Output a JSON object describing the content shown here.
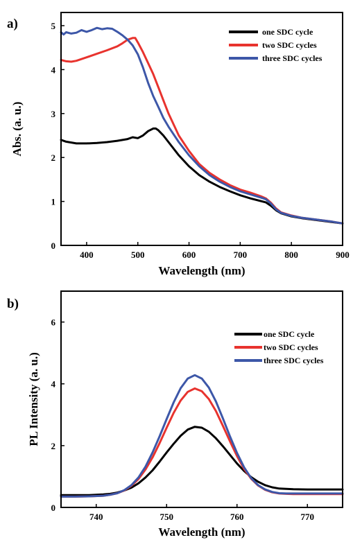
{
  "colors": {
    "black": "#000000",
    "red": "#e8332e",
    "blue": "#3d57a8"
  },
  "chart_data": [
    {
      "panel_label": "a)",
      "type": "line",
      "xlabel": "Wavelength (nm)",
      "ylabel": "Abs. (a. u.)",
      "xlim": [
        350,
        900
      ],
      "ylim": [
        0,
        5.3
      ],
      "xticks": [
        400,
        500,
        600,
        700,
        800,
        900
      ],
      "yticks": [
        0,
        1,
        2,
        3,
        4,
        5
      ],
      "grid": false,
      "legend_position": "top-right",
      "series": [
        {
          "name": "one SDC cycle",
          "color": "#000000",
          "x": [
            350,
            360,
            380,
            400,
            420,
            440,
            460,
            480,
            490,
            500,
            510,
            520,
            530,
            535,
            540,
            550,
            560,
            580,
            600,
            620,
            640,
            660,
            680,
            700,
            720,
            740,
            750,
            760,
            770,
            780,
            800,
            820,
            840,
            860,
            880,
            900
          ],
          "y": [
            2.4,
            2.36,
            2.32,
            2.32,
            2.33,
            2.35,
            2.38,
            2.42,
            2.46,
            2.44,
            2.5,
            2.6,
            2.66,
            2.66,
            2.62,
            2.5,
            2.35,
            2.05,
            1.8,
            1.6,
            1.45,
            1.33,
            1.23,
            1.14,
            1.07,
            1.01,
            0.98,
            0.9,
            0.8,
            0.73,
            0.66,
            0.62,
            0.59,
            0.56,
            0.53,
            0.5
          ]
        },
        {
          "name": "two SDC cycles",
          "color": "#e8332e",
          "x": [
            350,
            360,
            370,
            380,
            400,
            420,
            440,
            460,
            470,
            480,
            490,
            495,
            500,
            510,
            520,
            530,
            540,
            550,
            560,
            580,
            600,
            620,
            640,
            660,
            680,
            700,
            720,
            740,
            750,
            760,
            770,
            780,
            800,
            820,
            840,
            860,
            880,
            900
          ],
          "y": [
            4.22,
            4.19,
            4.18,
            4.2,
            4.28,
            4.36,
            4.44,
            4.53,
            4.6,
            4.68,
            4.72,
            4.72,
            4.62,
            4.4,
            4.15,
            3.9,
            3.6,
            3.3,
            3.0,
            2.5,
            2.15,
            1.85,
            1.65,
            1.5,
            1.37,
            1.27,
            1.2,
            1.12,
            1.07,
            0.97,
            0.84,
            0.75,
            0.68,
            0.63,
            0.6,
            0.57,
            0.54,
            0.5
          ]
        },
        {
          "name": "three SDC cycles",
          "color": "#3d57a8",
          "x": [
            350,
            355,
            360,
            370,
            380,
            390,
            400,
            410,
            420,
            430,
            440,
            450,
            460,
            470,
            480,
            490,
            500,
            510,
            520,
            530,
            540,
            550,
            560,
            580,
            600,
            620,
            640,
            660,
            680,
            700,
            720,
            740,
            750,
            760,
            770,
            780,
            800,
            820,
            840,
            860,
            880,
            900
          ],
          "y": [
            4.85,
            4.8,
            4.85,
            4.82,
            4.84,
            4.9,
            4.86,
            4.9,
            4.95,
            4.92,
            4.94,
            4.93,
            4.86,
            4.78,
            4.68,
            4.55,
            4.35,
            4.05,
            3.7,
            3.4,
            3.15,
            2.9,
            2.7,
            2.35,
            2.05,
            1.8,
            1.6,
            1.45,
            1.33,
            1.23,
            1.16,
            1.09,
            1.05,
            0.95,
            0.82,
            0.74,
            0.67,
            0.63,
            0.6,
            0.57,
            0.54,
            0.5
          ]
        }
      ]
    },
    {
      "panel_label": "b)",
      "type": "line",
      "xlabel": "Wavelength (nm)",
      "ylabel": "PL Intensity (a. u.)",
      "xlim": [
        735,
        775
      ],
      "ylim": [
        0,
        7
      ],
      "xticks": [
        740,
        750,
        760,
        770
      ],
      "yticks": [
        0,
        2,
        4,
        6
      ],
      "grid": false,
      "legend_position": "top-right",
      "series": [
        {
          "name": "one SDC cycle",
          "color": "#000000",
          "x": [
            735,
            737,
            739,
            741,
            742,
            743,
            744,
            745,
            746,
            747,
            748,
            749,
            750,
            751,
            752,
            753,
            754,
            755,
            756,
            757,
            758,
            759,
            760,
            761,
            762,
            763,
            764,
            765,
            766,
            768,
            770,
            772,
            775
          ],
          "y": [
            0.4,
            0.4,
            0.4,
            0.42,
            0.44,
            0.48,
            0.55,
            0.64,
            0.78,
            0.97,
            1.2,
            1.48,
            1.78,
            2.06,
            2.32,
            2.52,
            2.61,
            2.58,
            2.45,
            2.24,
            1.98,
            1.7,
            1.42,
            1.18,
            0.98,
            0.83,
            0.72,
            0.65,
            0.61,
            0.59,
            0.58,
            0.58,
            0.58
          ]
        },
        {
          "name": "two SDC cycles",
          "color": "#e8332e",
          "x": [
            735,
            737,
            739,
            741,
            742,
            743,
            744,
            745,
            746,
            747,
            748,
            749,
            750,
            751,
            752,
            753,
            754,
            755,
            756,
            757,
            758,
            759,
            760,
            761,
            762,
            763,
            764,
            765,
            766,
            767,
            768,
            770,
            772,
            775
          ],
          "y": [
            0.35,
            0.35,
            0.36,
            0.38,
            0.41,
            0.46,
            0.55,
            0.7,
            0.92,
            1.23,
            1.62,
            2.08,
            2.58,
            3.06,
            3.46,
            3.74,
            3.85,
            3.76,
            3.51,
            3.12,
            2.64,
            2.14,
            1.66,
            1.25,
            0.93,
            0.71,
            0.57,
            0.49,
            0.45,
            0.44,
            0.43,
            0.43,
            0.43,
            0.43
          ]
        },
        {
          "name": "three SDC cycles",
          "color": "#3d57a8",
          "x": [
            735,
            737,
            739,
            741,
            742,
            743,
            744,
            745,
            746,
            747,
            748,
            749,
            750,
            751,
            752,
            753,
            754,
            755,
            756,
            757,
            758,
            759,
            760,
            761,
            762,
            763,
            764,
            765,
            766,
            767,
            768,
            770,
            772,
            775
          ],
          "y": [
            0.35,
            0.35,
            0.36,
            0.38,
            0.41,
            0.46,
            0.56,
            0.72,
            0.97,
            1.32,
            1.78,
            2.3,
            2.86,
            3.4,
            3.86,
            4.17,
            4.28,
            4.17,
            3.88,
            3.43,
            2.88,
            2.3,
            1.76,
            1.3,
            0.95,
            0.72,
            0.58,
            0.5,
            0.46,
            0.45,
            0.45,
            0.45,
            0.45,
            0.45
          ]
        }
      ]
    }
  ]
}
